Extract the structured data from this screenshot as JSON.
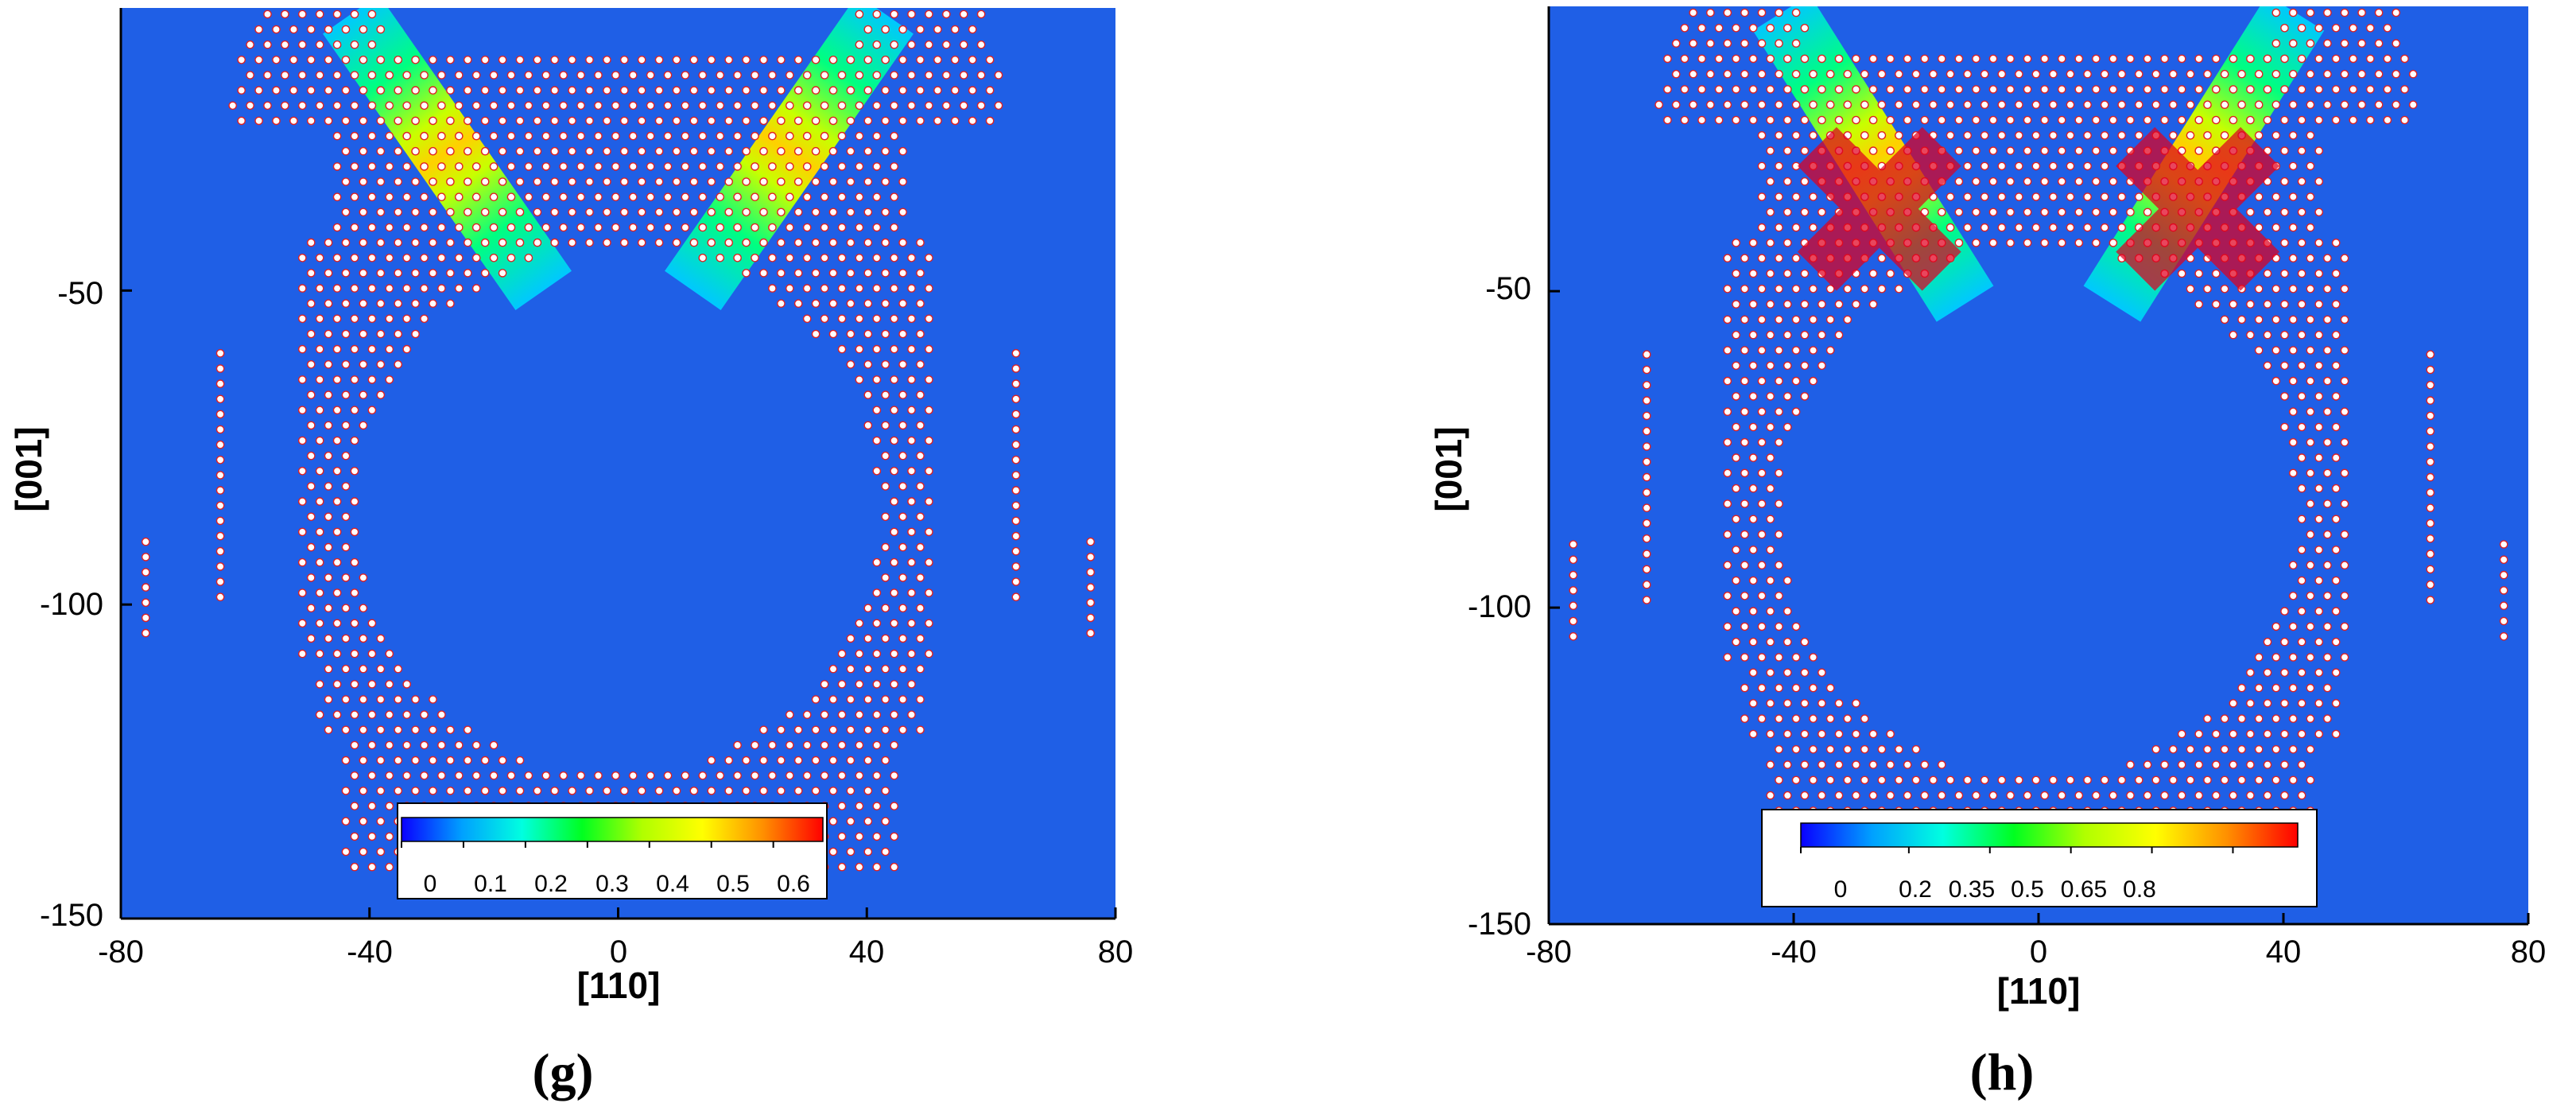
{
  "chart_data": [
    {
      "type": "heatmap",
      "caption": "(g)",
      "xlabel": "[110]",
      "ylabel": "[001]",
      "xlim": [
        -80,
        80
      ],
      "ylim": [
        -150,
        -5
      ],
      "x_ticks": [
        "-80",
        "-40",
        "0",
        "40",
        "80"
      ],
      "y_ticks": [
        "-50",
        "-100",
        "-150"
      ],
      "colorbar": {
        "range": [
          0,
          0.68
        ],
        "tick_values": [
          0,
          0.1,
          0.2,
          0.3,
          0.4,
          0.5,
          0.6
        ],
        "tick_labels": [
          "0",
          "0.1",
          "0.2",
          "0.3",
          "0.4",
          "0.5",
          "0.6"
        ],
        "colormap": [
          "#0a00ff",
          "#00a0ff",
          "#00ffe0",
          "#00ff20",
          "#b0ff00",
          "#ffff00",
          "#ff9000",
          "#ff0000"
        ]
      },
      "background_color": "#1f5fe6",
      "void": {
        "center": [
          0,
          -85
        ],
        "radius": 42
      },
      "shear_bands": [
        {
          "from": [
            -43,
            -6
          ],
          "to": [
            -12,
            -50
          ],
          "peak": 0.6
        },
        {
          "from": [
            43,
            -6
          ],
          "to": [
            12,
            -50
          ],
          "peak": 0.6
        }
      ],
      "highlight_regions": []
    },
    {
      "type": "heatmap",
      "caption": "(h)",
      "xlabel": "[110]",
      "ylabel": "[001]",
      "xlim": [
        -80,
        80
      ],
      "ylim": [
        -150,
        -5
      ],
      "x_ticks": [
        "-80",
        "-40",
        "0",
        "40",
        "80"
      ],
      "y_ticks": [
        "-50",
        "-100",
        "-150"
      ],
      "colorbar": {
        "range": [
          0,
          0.92
        ],
        "tick_values": [
          0,
          0.2,
          0.35,
          0.5,
          0.65,
          0.8
        ],
        "tick_labels": [
          "0",
          "0.2",
          "0.35",
          "0.5",
          "0.65",
          "0.8"
        ],
        "colormap": [
          "#0a00ff",
          "#00a0ff",
          "#00ffe0",
          "#00ff20",
          "#b0ff00",
          "#ffff00",
          "#ff9000",
          "#ff0000"
        ]
      },
      "background_color": "#1f5fe6",
      "void": {
        "center": [
          0,
          -85
        ],
        "radius": 42
      },
      "shear_bands": [
        {
          "from": [
            -42,
            -6
          ],
          "to": [
            -12,
            -52
          ],
          "peak": 0.55
        },
        {
          "from": [
            42,
            -6
          ],
          "to": [
            12,
            -52
          ],
          "peak": 0.55
        }
      ],
      "highlight_regions": [
        {
          "center": [
            -26,
            -37
          ]
        },
        {
          "center": [
            26,
            -37
          ]
        }
      ]
    }
  ]
}
